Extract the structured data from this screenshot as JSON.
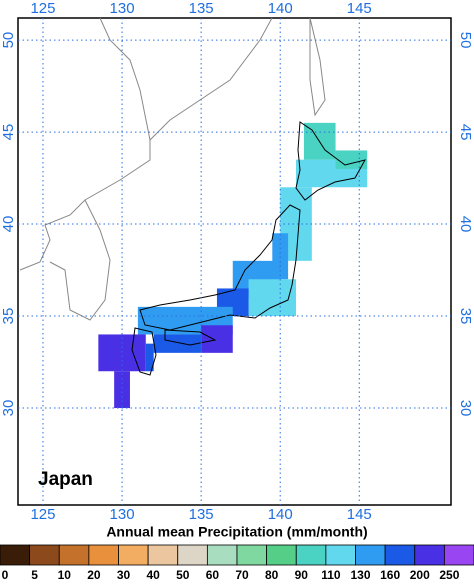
{
  "map": {
    "title": "Japan",
    "lonlim": [
      123.42,
      150.8
    ],
    "latlim": [
      24.73,
      51.2
    ],
    "lon_ticks": [
      125,
      130,
      135,
      140,
      145
    ],
    "lat_ticks": [
      30,
      35,
      40,
      45,
      50
    ],
    "grid": true,
    "cells": [
      {
        "lon": [
          141,
          145.5
        ],
        "lat": [
          42,
          43.5
        ],
        "value": 120
      },
      {
        "lon": [
          141.5,
          143.5
        ],
        "lat": [
          43.5,
          45.5
        ],
        "value": 90
      },
      {
        "lon": [
          143.5,
          145.5
        ],
        "lat": [
          43,
          44
        ],
        "value": 100
      },
      {
        "lon": [
          140,
          142
        ],
        "lat": [
          38,
          42
        ],
        "value": 120
      },
      {
        "lon": [
          139.5,
          140.5
        ],
        "lat": [
          37,
          39.5
        ],
        "value": 140
      },
      {
        "lon": [
          137,
          140
        ],
        "lat": [
          36,
          38
        ],
        "value": 150
      },
      {
        "lon": [
          138,
          141
        ],
        "lat": [
          35,
          37
        ],
        "value": 120
      },
      {
        "lon": [
          136,
          138
        ],
        "lat": [
          35,
          36.5
        ],
        "value": 180
      },
      {
        "lon": [
          131,
          137
        ],
        "lat": [
          34,
          35.5
        ],
        "value": 140
      },
      {
        "lon": [
          132,
          135
        ],
        "lat": [
          33,
          34
        ],
        "value": 170
      },
      {
        "lon": [
          135,
          137
        ],
        "lat": [
          33,
          34.5
        ],
        "value": 200
      },
      {
        "lon": [
          128.5,
          131.5
        ],
        "lat": [
          32,
          34
        ],
        "value": 200
      },
      {
        "lon": [
          129.5,
          130.5
        ],
        "lat": [
          30,
          32
        ],
        "value": 210
      },
      {
        "lon": [
          131.5,
          132
        ],
        "lat": [
          32,
          33.5
        ],
        "value": 180
      }
    ]
  },
  "colorbar": {
    "label": "Annual mean Precipitation (mm/month)",
    "levels": [
      0,
      5,
      10,
      20,
      30,
      40,
      50,
      60,
      70,
      80,
      90,
      110,
      130,
      160,
      200,
      250
    ],
    "colors": [
      "#3a1d08",
      "#8c4a1c",
      "#c4712c",
      "#e8903c",
      "#f2ad62",
      "#ebc69e",
      "#ddd5c6",
      "#a9ddc0",
      "#7fd8a0",
      "#55cf88",
      "#4ad2c2",
      "#62d8ee",
      "#2f9cf2",
      "#1a5ae6",
      "#4a30e4",
      "#9a45f2"
    ]
  }
}
